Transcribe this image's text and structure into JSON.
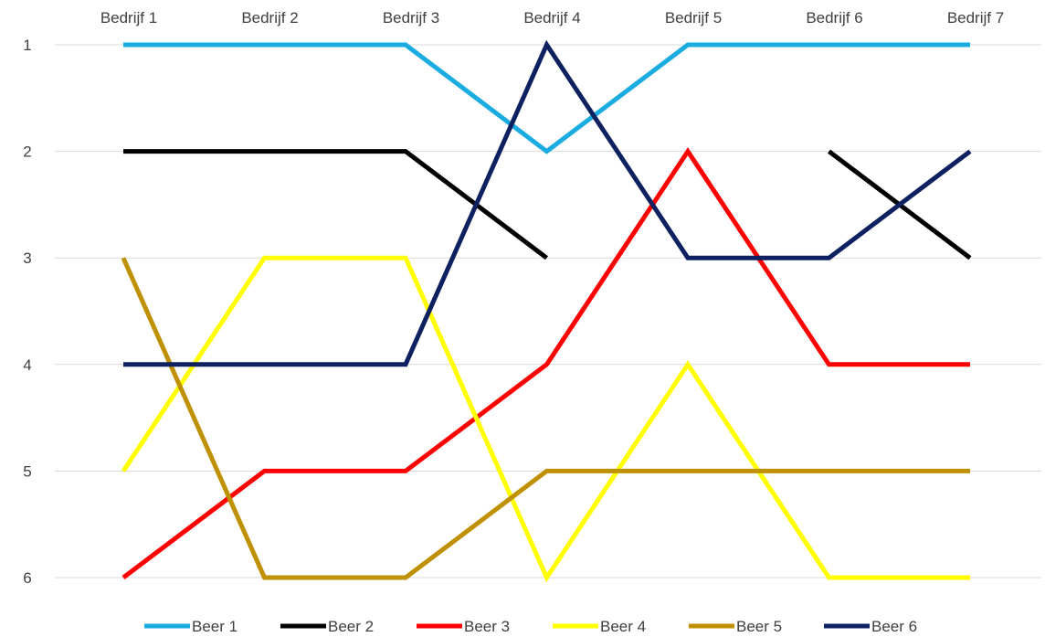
{
  "chart_data": {
    "type": "line",
    "categories": [
      "Bedrijf 1",
      "Bedrijf 2",
      "Bedrijf 3",
      "Bedrijf 4",
      "Bedrijf 5",
      "Bedrijf 6",
      "Bedrijf 7"
    ],
    "y_ticks": [
      "1",
      "2",
      "3",
      "4",
      "5",
      "6"
    ],
    "ylim": [
      1,
      6
    ],
    "y_reversed": true,
    "x_axis_position": "top",
    "grid": true,
    "legend_position": "bottom",
    "series": [
      {
        "name": "Beer 1",
        "color": "#1aabe0",
        "values": [
          1,
          1,
          1,
          2,
          1,
          1,
          1
        ]
      },
      {
        "name": "Beer 2",
        "color": "#000000",
        "values": [
          2,
          2,
          2,
          3,
          null,
          2,
          3
        ]
      },
      {
        "name": "Beer 3",
        "color": "#ff0000",
        "values": [
          6,
          5,
          5,
          4,
          2,
          4,
          4
        ]
      },
      {
        "name": "Beer 4",
        "color": "#ffff00",
        "values": [
          5,
          3,
          3,
          6,
          4,
          6,
          6
        ]
      },
      {
        "name": "Beer 5",
        "color": "#bf9000",
        "values": [
          3,
          6,
          6,
          5,
          5,
          5,
          5
        ]
      },
      {
        "name": "Beer 6",
        "color": "#0d2060",
        "values": [
          4,
          4,
          4,
          1,
          3,
          3,
          2
        ]
      }
    ]
  }
}
